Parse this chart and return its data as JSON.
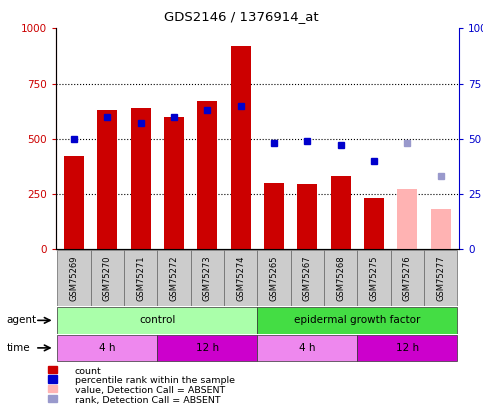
{
  "title": "GDS2146 / 1376914_at",
  "samples": [
    "GSM75269",
    "GSM75270",
    "GSM75271",
    "GSM75272",
    "GSM75273",
    "GSM75274",
    "GSM75265",
    "GSM75267",
    "GSM75268",
    "GSM75275",
    "GSM75276",
    "GSM75277"
  ],
  "bar_values": [
    420,
    630,
    640,
    600,
    670,
    920,
    300,
    295,
    330,
    230,
    null,
    null
  ],
  "bar_color_normal": "#cc0000",
  "bar_color_absent": "#ffb3b3",
  "bar_absent": [
    false,
    false,
    false,
    false,
    false,
    false,
    false,
    false,
    false,
    false,
    true,
    true
  ],
  "bar_absent_values": [
    null,
    null,
    null,
    null,
    null,
    null,
    null,
    null,
    null,
    null,
    270,
    180
  ],
  "rank_values": [
    50,
    60,
    57,
    60,
    63,
    65,
    48,
    49,
    47,
    40,
    null,
    null
  ],
  "rank_color_normal": "#0000cc",
  "rank_absent": [
    false,
    false,
    false,
    false,
    false,
    false,
    false,
    false,
    false,
    false,
    true,
    true
  ],
  "rank_absent_values": [
    null,
    null,
    null,
    null,
    null,
    null,
    null,
    null,
    null,
    null,
    48,
    33
  ],
  "rank_color_absent": "#9999cc",
  "ylim_left": [
    0,
    1000
  ],
  "ylim_right": [
    0,
    100
  ],
  "yticks_left": [
    0,
    250,
    500,
    750,
    1000
  ],
  "yticks_right": [
    0,
    25,
    50,
    75,
    100
  ],
  "agent_labels": [
    {
      "text": "control",
      "start": 0,
      "end": 6,
      "color": "#aaffaa"
    },
    {
      "text": "epidermal growth factor",
      "start": 6,
      "end": 12,
      "color": "#44dd44"
    }
  ],
  "time_labels": [
    {
      "text": "4 h",
      "start": 0,
      "end": 3,
      "color": "#ee88ee"
    },
    {
      "text": "12 h",
      "start": 3,
      "end": 6,
      "color": "#cc00cc"
    },
    {
      "text": "4 h",
      "start": 6,
      "end": 9,
      "color": "#ee88ee"
    },
    {
      "text": "12 h",
      "start": 9,
      "end": 12,
      "color": "#cc00cc"
    }
  ],
  "legend_items": [
    {
      "label": "count",
      "color": "#cc0000"
    },
    {
      "label": "percentile rank within the sample",
      "color": "#0000cc"
    },
    {
      "label": "value, Detection Call = ABSENT",
      "color": "#ffb3b3"
    },
    {
      "label": "rank, Detection Call = ABSENT",
      "color": "#9999cc"
    }
  ],
  "bar_width": 0.6,
  "background_color": "#ffffff",
  "left_axis_color": "#cc0000",
  "right_axis_color": "#0000cc",
  "label_bg": "#cccccc"
}
